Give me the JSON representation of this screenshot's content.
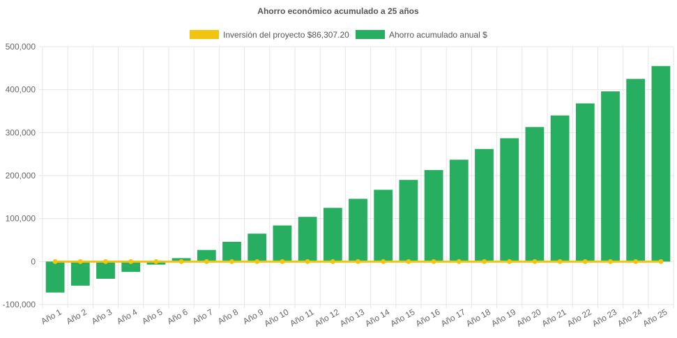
{
  "chart_data": {
    "type": "bar",
    "title": "Ahorro económico acumulado a 25 años",
    "categories": [
      "Año 1",
      "Año 2",
      "Año 3",
      "Año 4",
      "Año 5",
      "Año 6",
      "Año 7",
      "Año 8",
      "Año 9",
      "Año 10",
      "Año 11",
      "Año 12",
      "Año 13",
      "Año 14",
      "Año 15",
      "Año 16",
      "Año 17",
      "Año 18",
      "Año 19",
      "Año 20",
      "Año 21",
      "Año 22",
      "Año 23",
      "Año 24",
      "Año 25"
    ],
    "series": [
      {
        "name": "Inversión del proyecto $86,307.20",
        "type": "line",
        "color": "#f1c40f",
        "values": [
          0,
          0,
          0,
          0,
          0,
          0,
          0,
          0,
          0,
          0,
          0,
          0,
          0,
          0,
          0,
          0,
          0,
          0,
          0,
          0,
          0,
          0,
          0,
          0,
          0
        ]
      },
      {
        "name": "Ahorro acumulado anual $",
        "type": "bar",
        "color": "#27ae60",
        "values": [
          -72000,
          -56000,
          -40000,
          -24000,
          -7000,
          8000,
          27000,
          46000,
          65000,
          84000,
          104000,
          125000,
          146000,
          167000,
          190000,
          213000,
          237000,
          262000,
          287000,
          313000,
          340000,
          368000,
          396000,
          425000,
          455000
        ]
      }
    ],
    "yticks": [
      "500,000",
      "400,000",
      "300,000",
      "200,000",
      "100,000",
      "0",
      "-100,000"
    ],
    "ylim": [
      -100000,
      500000
    ],
    "grid": true,
    "legend": "top"
  }
}
